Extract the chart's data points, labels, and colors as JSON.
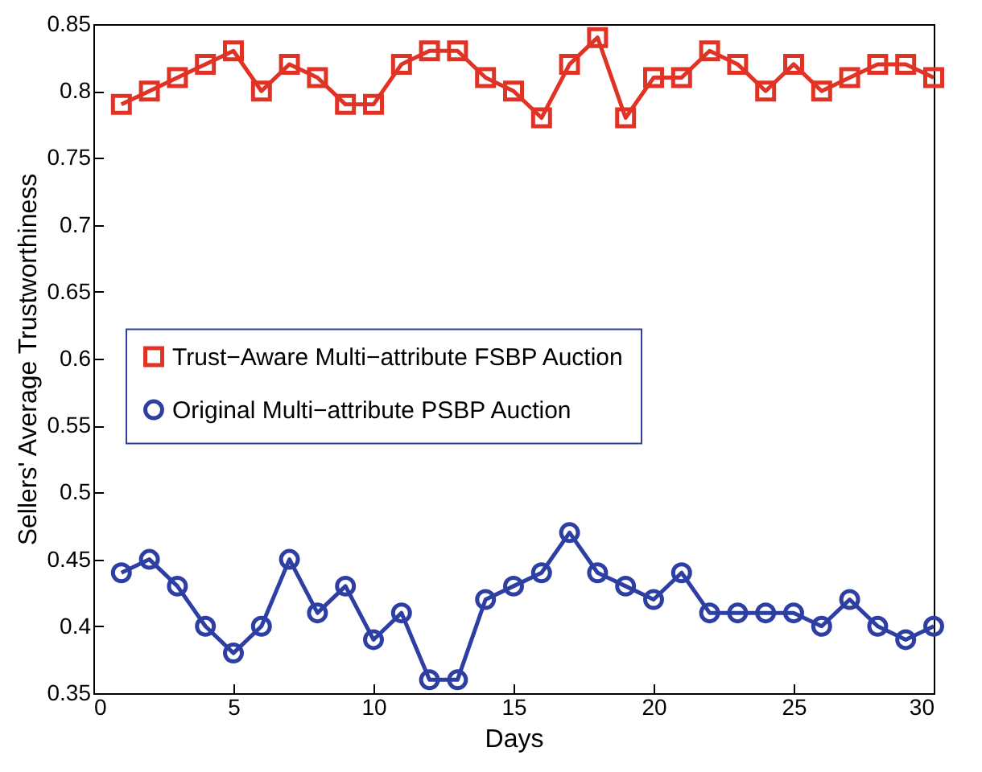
{
  "chart_data": {
    "type": "line",
    "xlabel": "Days",
    "ylabel": "Sellers' Average Trustworthiness",
    "x": [
      1,
      2,
      3,
      4,
      5,
      6,
      7,
      8,
      9,
      10,
      11,
      12,
      13,
      14,
      15,
      16,
      17,
      18,
      19,
      20,
      21,
      22,
      23,
      24,
      25,
      26,
      27,
      28,
      29,
      30
    ],
    "series": [
      {
        "name": "Trust−Aware Multi−attribute FSBP Auction",
        "color": "#e03326",
        "marker": "square",
        "values": [
          0.79,
          0.8,
          0.81,
          0.82,
          0.83,
          0.8,
          0.82,
          0.81,
          0.79,
          0.79,
          0.82,
          0.83,
          0.83,
          0.81,
          0.8,
          0.78,
          0.82,
          0.84,
          0.78,
          0.81,
          0.81,
          0.83,
          0.82,
          0.8,
          0.82,
          0.8,
          0.81,
          0.82,
          0.82,
          0.81
        ]
      },
      {
        "name": "Original Multi−attribute PSBP Auction",
        "color": "#2e3fa3",
        "marker": "circle",
        "values": [
          0.44,
          0.45,
          0.43,
          0.4,
          0.38,
          0.4,
          0.45,
          0.41,
          0.43,
          0.39,
          0.41,
          0.36,
          0.36,
          0.42,
          0.43,
          0.44,
          0.47,
          0.44,
          0.43,
          0.42,
          0.44,
          0.41,
          0.41,
          0.41,
          0.41,
          0.4,
          0.42,
          0.4,
          0.39,
          0.4
        ]
      }
    ],
    "xlim": [
      0,
      30
    ],
    "xticks": [
      0,
      5,
      10,
      15,
      20,
      25,
      30
    ],
    "ylim": [
      0.35,
      0.85
    ],
    "yticks": [
      0.35,
      0.4,
      0.45,
      0.5,
      0.55,
      0.6,
      0.65,
      0.7,
      0.75,
      0.8,
      0.85
    ],
    "legend": "left",
    "line_style": "solid"
  }
}
